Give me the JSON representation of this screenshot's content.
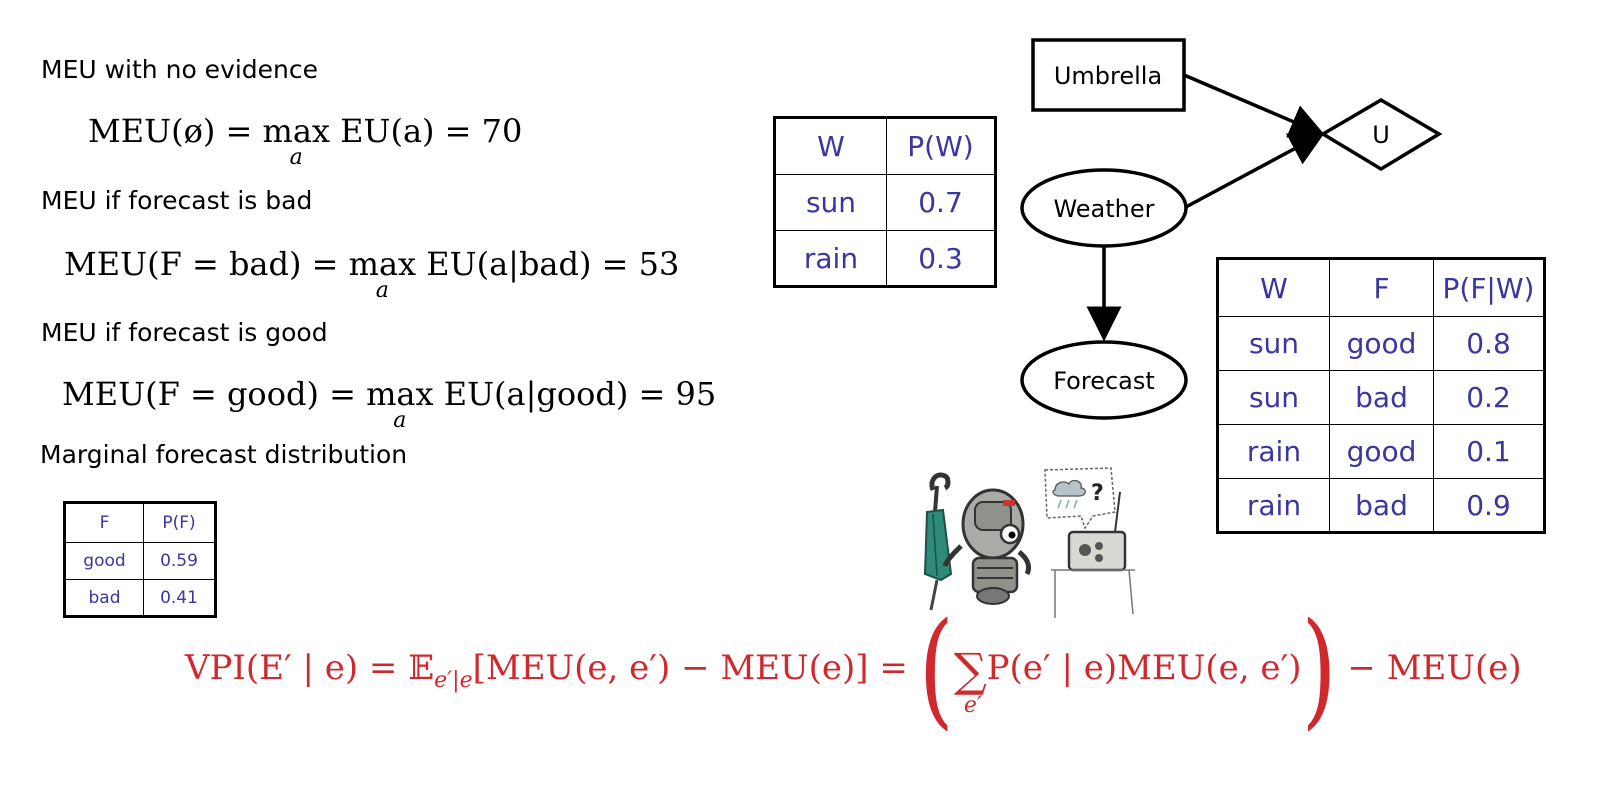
{
  "left": {
    "heading1": "MEU with no evidence",
    "eq1": {
      "lhs": "MEU(ø) = ",
      "op": "max",
      "sub": "a",
      "rhs": " EU(a) = 70"
    },
    "heading2": "MEU if forecast is bad",
    "eq2": {
      "lhs": "MEU(F = bad) = ",
      "op": "max",
      "sub": "a",
      "rhs": " EU(a|bad) = 53"
    },
    "heading3": "MEU if forecast is good",
    "eq3": {
      "lhs": "MEU(F = good) = ",
      "op": "max",
      "sub": "a",
      "rhs": " EU(a|good) = 95"
    },
    "heading4": "Marginal forecast distribution"
  },
  "pf_table": {
    "headers": [
      "F",
      "P(F)"
    ],
    "rows": [
      [
        "good",
        "0.59"
      ],
      [
        "bad",
        "0.41"
      ]
    ]
  },
  "pw_table": {
    "headers": [
      "W",
      "P(W)"
    ],
    "rows": [
      [
        "sun",
        "0.7"
      ],
      [
        "rain",
        "0.3"
      ]
    ]
  },
  "pfw_table": {
    "headers": [
      "W",
      "F",
      "P(F|W)"
    ],
    "rows": [
      [
        "sun",
        "good",
        "0.8"
      ],
      [
        "sun",
        "bad",
        "0.2"
      ],
      [
        "rain",
        "good",
        "0.1"
      ],
      [
        "rain",
        "bad",
        "0.9"
      ]
    ]
  },
  "network": {
    "umbrella": "Umbrella",
    "utility": "U",
    "weather": "Weather",
    "forecast": "Forecast"
  },
  "illustration": {
    "bubble_text": "?"
  },
  "vpi": {
    "lhs": "VPI(E′ | e) = ",
    "expect": "𝔼",
    "expect_sub": "e′|e",
    "bracket": "[MEU(e, e′) − MEU(e)] = ",
    "sum_sub": "e′",
    "inner": "P(e′ | e)MEU(e, e′)",
    "tail": " − MEU(e)"
  },
  "colors": {
    "table_text": "#3a37a0",
    "formula": "#d0282d"
  }
}
